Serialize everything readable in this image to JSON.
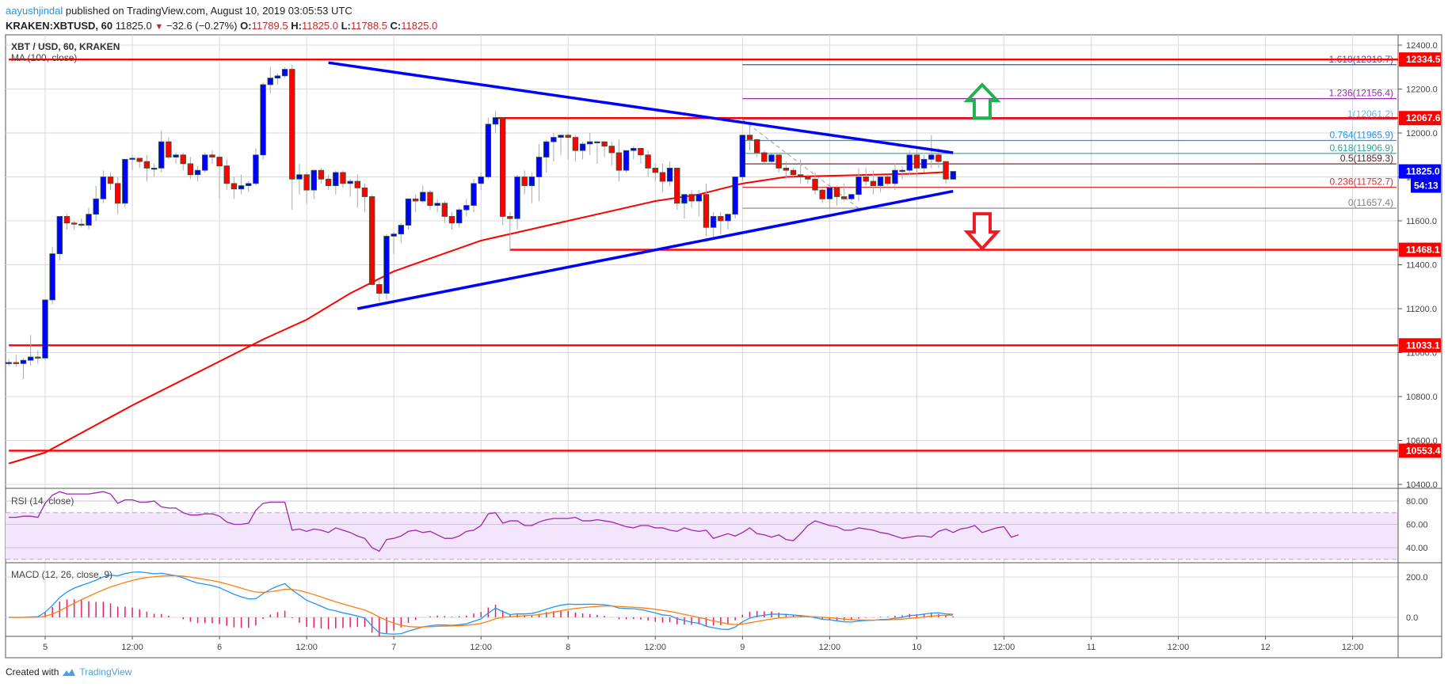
{
  "header": {
    "author": "aayushjindal",
    "published_text": "published on TradingView.com, August 10, 2019 03:05:53 UTC",
    "symbol": "KRAKEN:XBTUSD, 60",
    "last": "11825.0",
    "change": "−32.6 (−0.27%)",
    "open_label": "O:",
    "open": "11789.5",
    "high_label": "H:",
    "high": "11825.0",
    "low_label": "L:",
    "low": "11788.5",
    "close_label": "C:",
    "close": "11825.0",
    "down_arrow_icon": "▼"
  },
  "main_pane": {
    "title": "XBT / USD, 60, KRAKEN",
    "indicator": "MA (100, close)"
  },
  "rsi_pane": {
    "label": "RSI (14, close)"
  },
  "macd_pane": {
    "label": "MACD (12, 26, close, 9)"
  },
  "footer": {
    "created_with": "Created with",
    "brand": "TradingView"
  },
  "colors": {
    "up": "#0000ff",
    "down": "#ff0000",
    "ma": "#ff0000",
    "trendline": "#0000ff",
    "level": "#ff0000",
    "rsi": "#9c27b0",
    "rsi_band": "#f3e5fc",
    "macd": "#2196f3",
    "signal": "#ff7f0e",
    "hist": "#e91e63",
    "arrow_up": "#22b14c",
    "arrow_down": "#ed1c24",
    "grid": "#d9d9d9"
  },
  "chart_data": {
    "type": "candlestick",
    "title": "XBT / USD, 60, KRAKEN",
    "interval": "60",
    "ylim": [
      10380,
      12440
    ],
    "y_ticks": [
      "12400.0",
      "12200.0",
      "12000.0",
      "11800.0",
      "11600.0",
      "11400.0",
      "11200.0",
      "11000.0",
      "10800.0",
      "10600.0",
      "10400.0"
    ],
    "x_ticks": [
      {
        "label": "5",
        "h": 0
      },
      {
        "label": "12:00",
        "h": 12
      },
      {
        "label": "6",
        "h": 24
      },
      {
        "label": "12:00",
        "h": 36
      },
      {
        "label": "7",
        "h": 48
      },
      {
        "label": "12:00",
        "h": 60
      },
      {
        "label": "8",
        "h": 72
      },
      {
        "label": "12:00",
        "h": 84
      },
      {
        "label": "9",
        "h": 96
      },
      {
        "label": "12:00",
        "h": 108
      },
      {
        "label": "10",
        "h": 120
      },
      {
        "label": "12:00",
        "h": 132
      },
      {
        "label": "11",
        "h": 144
      },
      {
        "label": "12:00",
        "h": 156
      },
      {
        "label": "12",
        "h": 168
      },
      {
        "label": "12:00",
        "h": 180
      }
    ],
    "first_candle_h": -5,
    "candles_ohlc": [
      [
        10950,
        10970,
        10940,
        10955
      ],
      [
        10955,
        10990,
        10935,
        10950
      ],
      [
        10950,
        10975,
        10880,
        10965
      ],
      [
        10965,
        11080,
        10940,
        10980
      ],
      [
        10980,
        11010,
        10950,
        10975
      ],
      [
        10975,
        11230,
        10965,
        11240
      ],
      [
        11240,
        11480,
        11220,
        11450
      ],
      [
        11450,
        11590,
        11420,
        11620
      ],
      [
        11620,
        11630,
        11560,
        11590
      ],
      [
        11590,
        11600,
        11560,
        11585
      ],
      [
        11585,
        11610,
        11570,
        11580
      ],
      [
        11580,
        11660,
        11560,
        11630
      ],
      [
        11630,
        11760,
        11600,
        11700
      ],
      [
        11700,
        11830,
        11680,
        11800
      ],
      [
        11800,
        11820,
        11740,
        11770
      ],
      [
        11770,
        11800,
        11630,
        11680
      ],
      [
        11680,
        11880,
        11660,
        11880
      ],
      [
        11880,
        11900,
        11830,
        11885
      ],
      [
        11885,
        11880,
        11840,
        11870
      ],
      [
        11870,
        11900,
        11780,
        11840
      ],
      [
        11840,
        11860,
        11800,
        11840
      ],
      [
        11840,
        12010,
        11820,
        11960
      ],
      [
        11960,
        11980,
        11880,
        11890
      ],
      [
        11890,
        11910,
        11860,
        11900
      ],
      [
        11900,
        11910,
        11830,
        11860
      ],
      [
        11860,
        11890,
        11790,
        11810
      ],
      [
        11810,
        11850,
        11780,
        11830
      ],
      [
        11830,
        11910,
        11820,
        11900
      ],
      [
        11900,
        11920,
        11860,
        11890
      ],
      [
        11890,
        11900,
        11700,
        11850
      ],
      [
        11850,
        11880,
        11740,
        11770
      ],
      [
        11770,
        11800,
        11700,
        11745
      ],
      [
        11745,
        11810,
        11720,
        11760
      ],
      [
        11760,
        11780,
        11730,
        11770
      ],
      [
        11770,
        11930,
        11760,
        11900
      ],
      [
        11900,
        12230,
        11880,
        12220
      ],
      [
        12220,
        12300,
        12180,
        12250
      ],
      [
        12250,
        12270,
        12220,
        12260
      ],
      [
        12260,
        12300,
        12250,
        12290
      ],
      [
        12290,
        12310,
        11650,
        11790
      ],
      [
        11790,
        11860,
        11720,
        11810
      ],
      [
        11810,
        11820,
        11680,
        11740
      ],
      [
        11740,
        11830,
        11700,
        11830
      ],
      [
        11830,
        11840,
        11770,
        11790
      ],
      [
        11790,
        11810,
        11740,
        11760
      ],
      [
        11760,
        11830,
        11720,
        11820
      ],
      [
        11820,
        11830,
        11750,
        11770
      ],
      [
        11770,
        11790,
        11710,
        11780
      ],
      [
        11780,
        11810,
        11660,
        11750
      ],
      [
        11750,
        11770,
        11640,
        11710
      ],
      [
        11710,
        11720,
        11490,
        11310
      ],
      [
        11310,
        11330,
        11230,
        11270
      ],
      [
        11270,
        11540,
        11240,
        11530
      ],
      [
        11530,
        11550,
        11450,
        11540
      ],
      [
        11540,
        11590,
        11500,
        11580
      ],
      [
        11580,
        11690,
        11560,
        11700
      ],
      [
        11700,
        11720,
        11640,
        11690
      ],
      [
        11690,
        11760,
        11680,
        11730
      ],
      [
        11730,
        11740,
        11650,
        11670
      ],
      [
        11670,
        11700,
        11640,
        11680
      ],
      [
        11680,
        11690,
        11590,
        11620
      ],
      [
        11620,
        11640,
        11560,
        11590
      ],
      [
        11590,
        11660,
        11570,
        11650
      ],
      [
        11650,
        11700,
        11620,
        11670
      ],
      [
        11670,
        11790,
        11640,
        11770
      ],
      [
        11770,
        11820,
        11740,
        11800
      ],
      [
        11800,
        12070,
        11790,
        12040
      ],
      [
        12040,
        12100,
        12000,
        12070
      ],
      [
        12070,
        12060,
        11580,
        11620
      ],
      [
        11620,
        11640,
        11460,
        11610
      ],
      [
        11610,
        11810,
        11560,
        11800
      ],
      [
        11800,
        11830,
        11720,
        11760
      ],
      [
        11760,
        11820,
        11680,
        11800
      ],
      [
        11800,
        11950,
        11690,
        11890
      ],
      [
        11890,
        11970,
        11820,
        11960
      ],
      [
        11960,
        12000,
        11870,
        11980
      ],
      [
        11980,
        11990,
        11900,
        11990
      ],
      [
        11990,
        12000,
        11880,
        11980
      ],
      [
        11980,
        11990,
        11870,
        11920
      ],
      [
        11920,
        11960,
        11880,
        11950
      ],
      [
        11950,
        12000,
        11900,
        11960
      ],
      [
        11960,
        11950,
        11860,
        11960
      ],
      [
        11960,
        11960,
        11890,
        11940
      ],
      [
        11940,
        11960,
        11850,
        11910
      ],
      [
        11910,
        11970,
        11780,
        11830
      ],
      [
        11830,
        11920,
        11820,
        11920
      ],
      [
        11920,
        11940,
        11880,
        11930
      ],
      [
        11930,
        11920,
        11860,
        11900
      ],
      [
        11900,
        11920,
        11800,
        11840
      ],
      [
        11840,
        11860,
        11780,
        11820
      ],
      [
        11820,
        11860,
        11730,
        11780
      ],
      [
        11780,
        11870,
        11760,
        11840
      ],
      [
        11840,
        11820,
        11650,
        11680
      ],
      [
        11680,
        11720,
        11610,
        11720
      ],
      [
        11720,
        11740,
        11660,
        11690
      ],
      [
        11690,
        11740,
        11620,
        11720
      ],
      [
        11720,
        11770,
        11530,
        11570
      ],
      [
        11570,
        11640,
        11520,
        11620
      ],
      [
        11620,
        11640,
        11540,
        11600
      ],
      [
        11600,
        11630,
        11560,
        11630
      ],
      [
        11630,
        11800,
        11610,
        11800
      ],
      [
        11800,
        11880,
        11780,
        11990
      ],
      [
        11990,
        12050,
        11920,
        11970
      ],
      [
        11970,
        11960,
        11890,
        11910
      ],
      [
        11910,
        11920,
        11860,
        11870
      ],
      [
        11870,
        11910,
        11860,
        11900
      ],
      [
        11900,
        11890,
        11820,
        11840
      ],
      [
        11840,
        11870,
        11790,
        11830
      ],
      [
        11830,
        11840,
        11800,
        11810
      ],
      [
        11810,
        11880,
        11770,
        11800
      ],
      [
        11800,
        11810,
        11770,
        11790
      ],
      [
        11790,
        11820,
        11720,
        11740
      ],
      [
        11740,
        11750,
        11680,
        11700
      ],
      [
        11700,
        11770,
        11660,
        11750
      ],
      [
        11750,
        11760,
        11670,
        11710
      ],
      [
        11710,
        11770,
        11690,
        11700
      ],
      [
        11700,
        11720,
        11690,
        11720
      ],
      [
        11720,
        11840,
        11690,
        11800
      ],
      [
        11800,
        11840,
        11760,
        11780
      ],
      [
        11780,
        11830,
        11720,
        11760
      ],
      [
        11760,
        11800,
        11730,
        11800
      ],
      [
        11800,
        11810,
        11760,
        11770
      ],
      [
        11770,
        11860,
        11740,
        11830
      ],
      [
        11830,
        11850,
        11790,
        11830
      ],
      [
        11830,
        11920,
        11810,
        11900
      ],
      [
        11900,
        11930,
        11800,
        11840
      ],
      [
        11840,
        11900,
        11820,
        11880
      ],
      [
        11880,
        11990,
        11840,
        11900
      ],
      [
        11900,
        11930,
        11840,
        11870
      ],
      [
        11870,
        11870,
        11770,
        11790
      ],
      [
        11789.5,
        11825,
        11788.5,
        11825
      ]
    ],
    "ma100": [
      [
        -5,
        10495
      ],
      [
        0,
        10545
      ],
      [
        12,
        10760
      ],
      [
        24,
        10960
      ],
      [
        30,
        11060
      ],
      [
        36,
        11150
      ],
      [
        42,
        11270
      ],
      [
        48,
        11370
      ],
      [
        60,
        11510
      ],
      [
        72,
        11600
      ],
      [
        84,
        11690
      ],
      [
        90,
        11720
      ],
      [
        96,
        11770
      ],
      [
        102,
        11800
      ],
      [
        108,
        11805
      ],
      [
        114,
        11810
      ],
      [
        120,
        11815
      ],
      [
        124,
        11822
      ]
    ],
    "horizontal_levels": [
      {
        "price": 12334.5,
        "label": "12334.5",
        "x_start_h": -5
      },
      {
        "price": 12067.6,
        "label": "12067.6",
        "x_start_h": 62
      },
      {
        "price": 11468.1,
        "label": "11468.1",
        "x_start_h": 64
      },
      {
        "price": 11033.1,
        "label": "11033.1",
        "x_start_h": -5
      },
      {
        "price": 10553.4,
        "label": "10553.4",
        "x_start_h": -5
      }
    ],
    "trendlines": [
      {
        "name": "upper",
        "from": [
          39,
          12320
        ],
        "to": [
          125,
          11910
        ]
      },
      {
        "name": "lower",
        "from": [
          43,
          11200
        ],
        "to": [
          125,
          11735
        ]
      }
    ],
    "fib_levels": [
      {
        "ratio": "1.618",
        "price": 12310.7,
        "label": "1.618(12310.7)",
        "color": "#3f51b5"
      },
      {
        "ratio": "1.236",
        "price": 12156.4,
        "label": "1.236(12156.4)",
        "color": "#9c27b0"
      },
      {
        "ratio": "1",
        "price": 12061.2,
        "label": "1(12061.2)",
        "color": "#64b5f6"
      },
      {
        "ratio": "0.764",
        "price": 11965.9,
        "label": "0.764(11965.9)",
        "color": "#2196f3"
      },
      {
        "ratio": "0.618",
        "price": 11906.9,
        "label": "0.618(11906.9)",
        "color": "#26a69a"
      },
      {
        "ratio": "0.5",
        "price": 11859.3,
        "label": "0.5(11859.3)",
        "color": "#5d1a2b"
      },
      {
        "ratio": "0.236",
        "price": 11752.7,
        "label": "0.236(11752.7)",
        "color": "#d32f2f"
      },
      {
        "ratio": "0",
        "price": 11657.4,
        "label": "0(11657.4)",
        "color": "#808080"
      }
    ],
    "fib_x_start_h": 96,
    "price_labels": [
      {
        "price": 11825.0,
        "label": "11825.0",
        "bg": "#0000ff"
      },
      {
        "countdown": "54:13",
        "bg": "#0000ff"
      }
    ],
    "arrows": [
      {
        "dir": "up",
        "h": 129,
        "price": 12140
      },
      {
        "dir": "down",
        "h": 129,
        "price": 11560
      }
    ],
    "rsi": {
      "label": "RSI (14, close)",
      "y_ticks": [
        "80.00",
        "60.00",
        "40.00"
      ],
      "band": [
        30,
        70
      ],
      "values": [
        66,
        66,
        67,
        67,
        66,
        78,
        85,
        88,
        86,
        86,
        86,
        86,
        87,
        88,
        86,
        78,
        81,
        81,
        79,
        79,
        80,
        75,
        74,
        74,
        70,
        68,
        68,
        69,
        69,
        67,
        62,
        60,
        60,
        61,
        72,
        78,
        79,
        79,
        79,
        55,
        56,
        54,
        56,
        55,
        53,
        57,
        55,
        53,
        50,
        48,
        40,
        37,
        47,
        48,
        50,
        54,
        55,
        53,
        54,
        51,
        48,
        48,
        50,
        54,
        55,
        59,
        69,
        70,
        61,
        63,
        63,
        59,
        59,
        62,
        64,
        65,
        65,
        65,
        66,
        63,
        63,
        64,
        63,
        62,
        60,
        58,
        57,
        59,
        59,
        57,
        57,
        55,
        54,
        57,
        55,
        54,
        55,
        48,
        50,
        52,
        50,
        53,
        57,
        52,
        51,
        49,
        51,
        47,
        46,
        52,
        59,
        63,
        61,
        59,
        58,
        55,
        55,
        57,
        56,
        55,
        53,
        52,
        50,
        48,
        49,
        50,
        50,
        49,
        54,
        56,
        53,
        56,
        57,
        59,
        53,
        55,
        57,
        58,
        49,
        51
      ],
      "ylim": [
        24,
        92
      ]
    },
    "macd": {
      "label": "MACD (12, 26, close, 9)",
      "y_ticks": [
        "200.0",
        "0.0"
      ],
      "ylim": [
        -90,
        270
      ]
    }
  }
}
